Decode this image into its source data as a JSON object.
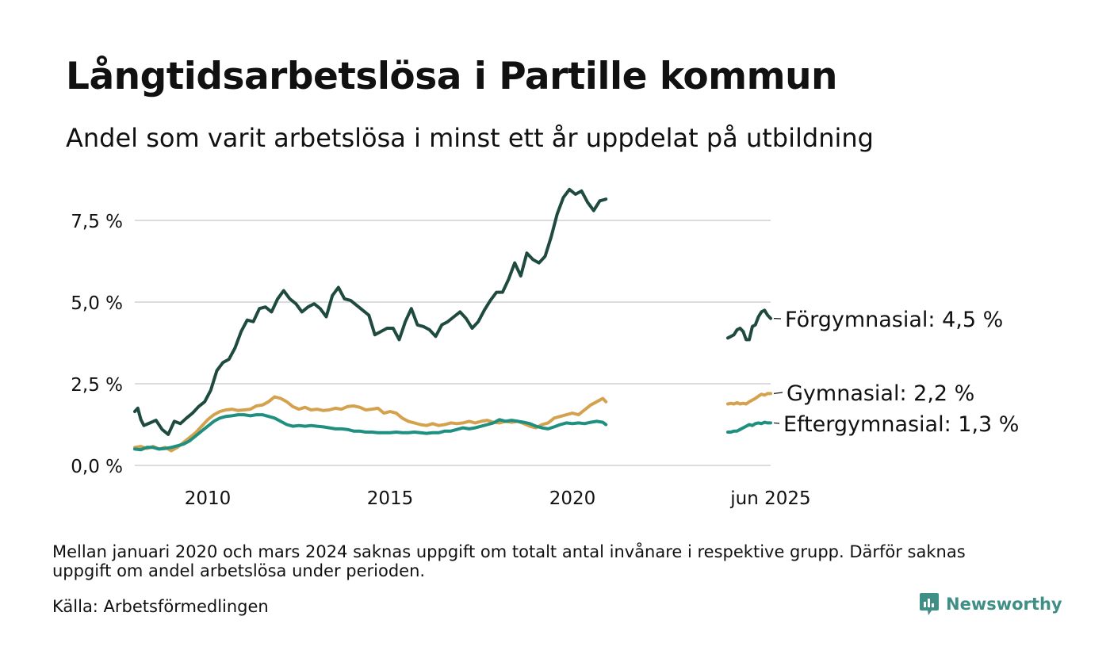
{
  "chart_data": {
    "type": "line",
    "title": "Långtidsarbetslösa i Partille kommun",
    "subtitle": "Andel som varit arbetslösa i minst ett år uppdelat på utbildning",
    "y_ticks": [
      0,
      2.5,
      5,
      7.5
    ],
    "y_tick_labels": [
      "0,0 %",
      "2,5 %",
      "5,0 %",
      "7,5 %"
    ],
    "ylim": [
      0,
      8.6
    ],
    "x_tick_labels": [
      "2010",
      "2015",
      "2020",
      "jun 2025"
    ],
    "x_ticks": [
      "2010-01",
      "2015-01",
      "2020-01",
      "2025-06"
    ],
    "grid": "horizontal",
    "legend": "direct-labels-right",
    "gap": [
      "2021-01",
      "2024-03"
    ],
    "series": [
      {
        "name": "Förgymnasial",
        "end_label": "Förgymnasial: 4,5 %",
        "color": "#1f4a3f",
        "points": [
          [
            "2008-01",
            1.65
          ],
          [
            "2008-02",
            1.75
          ],
          [
            "2008-03",
            1.4
          ],
          [
            "2008-04",
            1.22
          ],
          [
            "2008-06",
            1.3
          ],
          [
            "2008-08",
            1.38
          ],
          [
            "2008-10",
            1.1
          ],
          [
            "2008-12",
            0.95
          ],
          [
            "2009-02",
            1.35
          ],
          [
            "2009-04",
            1.28
          ],
          [
            "2009-06",
            1.45
          ],
          [
            "2009-08",
            1.6
          ],
          [
            "2009-10",
            1.8
          ],
          [
            "2009-12",
            1.95
          ],
          [
            "2010-02",
            2.3
          ],
          [
            "2010-04",
            2.9
          ],
          [
            "2010-06",
            3.15
          ],
          [
            "2010-08",
            3.25
          ],
          [
            "2010-10",
            3.6
          ],
          [
            "2010-12",
            4.1
          ],
          [
            "2011-02",
            4.45
          ],
          [
            "2011-04",
            4.4
          ],
          [
            "2011-06",
            4.8
          ],
          [
            "2011-08",
            4.85
          ],
          [
            "2011-10",
            4.7
          ],
          [
            "2011-12",
            5.1
          ],
          [
            "2012-02",
            5.35
          ],
          [
            "2012-04",
            5.1
          ],
          [
            "2012-06",
            4.95
          ],
          [
            "2012-08",
            4.7
          ],
          [
            "2012-10",
            4.85
          ],
          [
            "2012-12",
            4.95
          ],
          [
            "2013-02",
            4.8
          ],
          [
            "2013-04",
            4.55
          ],
          [
            "2013-06",
            5.2
          ],
          [
            "2013-08",
            5.45
          ],
          [
            "2013-10",
            5.1
          ],
          [
            "2013-12",
            5.05
          ],
          [
            "2014-02",
            4.9
          ],
          [
            "2014-04",
            4.75
          ],
          [
            "2014-06",
            4.6
          ],
          [
            "2014-08",
            4.0
          ],
          [
            "2014-10",
            4.1
          ],
          [
            "2014-12",
            4.2
          ],
          [
            "2015-02",
            4.2
          ],
          [
            "2015-04",
            3.85
          ],
          [
            "2015-06",
            4.4
          ],
          [
            "2015-08",
            4.8
          ],
          [
            "2015-10",
            4.3
          ],
          [
            "2015-12",
            4.25
          ],
          [
            "2016-02",
            4.15
          ],
          [
            "2016-04",
            3.95
          ],
          [
            "2016-06",
            4.3
          ],
          [
            "2016-08",
            4.4
          ],
          [
            "2016-10",
            4.55
          ],
          [
            "2016-12",
            4.7
          ],
          [
            "2017-02",
            4.5
          ],
          [
            "2017-04",
            4.2
          ],
          [
            "2017-06",
            4.4
          ],
          [
            "2017-08",
            4.75
          ],
          [
            "2017-10",
            5.05
          ],
          [
            "2017-12",
            5.3
          ],
          [
            "2018-02",
            5.3
          ],
          [
            "2018-04",
            5.7
          ],
          [
            "2018-06",
            6.2
          ],
          [
            "2018-08",
            5.8
          ],
          [
            "2018-10",
            6.5
          ],
          [
            "2018-12",
            6.3
          ],
          [
            "2019-02",
            6.2
          ],
          [
            "2019-04",
            6.4
          ],
          [
            "2019-06",
            7.0
          ],
          [
            "2019-08",
            7.7
          ],
          [
            "2019-10",
            8.2
          ],
          [
            "2019-12",
            8.45
          ],
          [
            "2020-02",
            8.3
          ],
          [
            "2020-04",
            8.4
          ],
          [
            "2020-06",
            8.05
          ],
          [
            "2020-08",
            7.8
          ],
          [
            "2020-10",
            8.1
          ],
          [
            "2020-12",
            8.15
          ]
        ],
        "points_after_gap": [
          [
            "2024-04",
            3.9
          ],
          [
            "2024-05",
            3.95
          ],
          [
            "2024-06",
            4.0
          ],
          [
            "2024-07",
            4.15
          ],
          [
            "2024-08",
            4.2
          ],
          [
            "2024-09",
            4.1
          ],
          [
            "2024-10",
            3.85
          ],
          [
            "2024-11",
            3.85
          ],
          [
            "2024-12",
            4.25
          ],
          [
            "2025-01",
            4.3
          ],
          [
            "2025-02",
            4.55
          ],
          [
            "2025-03",
            4.7
          ],
          [
            "2025-04",
            4.75
          ],
          [
            "2025-05",
            4.6
          ],
          [
            "2025-06",
            4.5
          ]
        ]
      },
      {
        "name": "Gymnasial",
        "end_label": "Gymnasial: 2,2 %",
        "color": "#d4a24f",
        "points": [
          [
            "2008-01",
            0.55
          ],
          [
            "2008-03",
            0.58
          ],
          [
            "2008-05",
            0.52
          ],
          [
            "2008-07",
            0.58
          ],
          [
            "2008-09",
            0.5
          ],
          [
            "2008-11",
            0.55
          ],
          [
            "2009-01",
            0.45
          ],
          [
            "2009-03",
            0.55
          ],
          [
            "2009-05",
            0.7
          ],
          [
            "2009-07",
            0.85
          ],
          [
            "2009-09",
            1.0
          ],
          [
            "2009-11",
            1.2
          ],
          [
            "2010-01",
            1.4
          ],
          [
            "2010-03",
            1.55
          ],
          [
            "2010-05",
            1.65
          ],
          [
            "2010-07",
            1.7
          ],
          [
            "2010-09",
            1.72
          ],
          [
            "2010-11",
            1.68
          ],
          [
            "2011-01",
            1.7
          ],
          [
            "2011-03",
            1.72
          ],
          [
            "2011-05",
            1.82
          ],
          [
            "2011-07",
            1.85
          ],
          [
            "2011-09",
            1.95
          ],
          [
            "2011-11",
            2.1
          ],
          [
            "2012-01",
            2.05
          ],
          [
            "2012-03",
            1.95
          ],
          [
            "2012-05",
            1.8
          ],
          [
            "2012-07",
            1.72
          ],
          [
            "2012-09",
            1.78
          ],
          [
            "2012-11",
            1.7
          ],
          [
            "2013-01",
            1.72
          ],
          [
            "2013-03",
            1.68
          ],
          [
            "2013-05",
            1.7
          ],
          [
            "2013-07",
            1.75
          ],
          [
            "2013-09",
            1.72
          ],
          [
            "2013-11",
            1.8
          ],
          [
            "2014-01",
            1.82
          ],
          [
            "2014-03",
            1.78
          ],
          [
            "2014-05",
            1.7
          ],
          [
            "2014-07",
            1.72
          ],
          [
            "2014-09",
            1.75
          ],
          [
            "2014-11",
            1.6
          ],
          [
            "2015-01",
            1.65
          ],
          [
            "2015-03",
            1.6
          ],
          [
            "2015-05",
            1.45
          ],
          [
            "2015-07",
            1.35
          ],
          [
            "2015-09",
            1.3
          ],
          [
            "2015-11",
            1.25
          ],
          [
            "2016-01",
            1.22
          ],
          [
            "2016-03",
            1.28
          ],
          [
            "2016-05",
            1.22
          ],
          [
            "2016-07",
            1.25
          ],
          [
            "2016-09",
            1.3
          ],
          [
            "2016-11",
            1.28
          ],
          [
            "2017-01",
            1.3
          ],
          [
            "2017-03",
            1.35
          ],
          [
            "2017-05",
            1.3
          ],
          [
            "2017-07",
            1.35
          ],
          [
            "2017-09",
            1.38
          ],
          [
            "2017-11",
            1.32
          ],
          [
            "2018-01",
            1.3
          ],
          [
            "2018-03",
            1.35
          ],
          [
            "2018-05",
            1.32
          ],
          [
            "2018-07",
            1.35
          ],
          [
            "2018-09",
            1.28
          ],
          [
            "2018-11",
            1.2
          ],
          [
            "2019-01",
            1.15
          ],
          [
            "2019-03",
            1.25
          ],
          [
            "2019-05",
            1.3
          ],
          [
            "2019-07",
            1.45
          ],
          [
            "2019-09",
            1.5
          ],
          [
            "2019-11",
            1.55
          ],
          [
            "2020-01",
            1.6
          ],
          [
            "2020-03",
            1.55
          ],
          [
            "2020-05",
            1.7
          ],
          [
            "2020-07",
            1.85
          ],
          [
            "2020-09",
            1.95
          ],
          [
            "2020-11",
            2.05
          ],
          [
            "2020-12",
            1.95
          ]
        ],
        "points_after_gap": [
          [
            "2024-04",
            1.88
          ],
          [
            "2024-05",
            1.9
          ],
          [
            "2024-06",
            1.88
          ],
          [
            "2024-07",
            1.92
          ],
          [
            "2024-08",
            1.88
          ],
          [
            "2024-09",
            1.9
          ],
          [
            "2024-10",
            1.88
          ],
          [
            "2024-11",
            1.95
          ],
          [
            "2024-12",
            2.0
          ],
          [
            "2025-01",
            2.05
          ],
          [
            "2025-02",
            2.12
          ],
          [
            "2025-03",
            2.18
          ],
          [
            "2025-04",
            2.15
          ],
          [
            "2025-05",
            2.2
          ],
          [
            "2025-06",
            2.2
          ]
        ]
      },
      {
        "name": "Eftergymnasial",
        "end_label": "Eftergymnasial: 1,3 %",
        "color": "#1f8f80",
        "points": [
          [
            "2008-01",
            0.5
          ],
          [
            "2008-03",
            0.48
          ],
          [
            "2008-05",
            0.55
          ],
          [
            "2008-07",
            0.55
          ],
          [
            "2008-09",
            0.5
          ],
          [
            "2008-11",
            0.52
          ],
          [
            "2009-01",
            0.55
          ],
          [
            "2009-03",
            0.6
          ],
          [
            "2009-05",
            0.65
          ],
          [
            "2009-07",
            0.75
          ],
          [
            "2009-09",
            0.9
          ],
          [
            "2009-11",
            1.05
          ],
          [
            "2010-01",
            1.2
          ],
          [
            "2010-03",
            1.35
          ],
          [
            "2010-05",
            1.45
          ],
          [
            "2010-07",
            1.5
          ],
          [
            "2010-09",
            1.52
          ],
          [
            "2010-11",
            1.55
          ],
          [
            "2011-01",
            1.55
          ],
          [
            "2011-03",
            1.52
          ],
          [
            "2011-05",
            1.55
          ],
          [
            "2011-07",
            1.55
          ],
          [
            "2011-09",
            1.5
          ],
          [
            "2011-11",
            1.45
          ],
          [
            "2012-01",
            1.35
          ],
          [
            "2012-03",
            1.25
          ],
          [
            "2012-05",
            1.2
          ],
          [
            "2012-07",
            1.22
          ],
          [
            "2012-09",
            1.2
          ],
          [
            "2012-11",
            1.22
          ],
          [
            "2013-01",
            1.2
          ],
          [
            "2013-03",
            1.18
          ],
          [
            "2013-05",
            1.15
          ],
          [
            "2013-07",
            1.12
          ],
          [
            "2013-09",
            1.12
          ],
          [
            "2013-11",
            1.1
          ],
          [
            "2014-01",
            1.05
          ],
          [
            "2014-03",
            1.05
          ],
          [
            "2014-05",
            1.02
          ],
          [
            "2014-07",
            1.02
          ],
          [
            "2014-09",
            1.0
          ],
          [
            "2014-11",
            1.0
          ],
          [
            "2015-01",
            1.0
          ],
          [
            "2015-03",
            1.02
          ],
          [
            "2015-05",
            1.0
          ],
          [
            "2015-07",
            1.0
          ],
          [
            "2015-09",
            1.02
          ],
          [
            "2015-11",
            1.0
          ],
          [
            "2016-01",
            0.98
          ],
          [
            "2016-03",
            1.0
          ],
          [
            "2016-05",
            1.0
          ],
          [
            "2016-07",
            1.05
          ],
          [
            "2016-09",
            1.05
          ],
          [
            "2016-11",
            1.1
          ],
          [
            "2017-01",
            1.15
          ],
          [
            "2017-03",
            1.12
          ],
          [
            "2017-05",
            1.15
          ],
          [
            "2017-07",
            1.2
          ],
          [
            "2017-09",
            1.25
          ],
          [
            "2017-11",
            1.3
          ],
          [
            "2018-01",
            1.4
          ],
          [
            "2018-03",
            1.35
          ],
          [
            "2018-05",
            1.38
          ],
          [
            "2018-07",
            1.35
          ],
          [
            "2018-09",
            1.32
          ],
          [
            "2018-11",
            1.28
          ],
          [
            "2019-01",
            1.2
          ],
          [
            "2019-03",
            1.15
          ],
          [
            "2019-05",
            1.12
          ],
          [
            "2019-07",
            1.18
          ],
          [
            "2019-09",
            1.25
          ],
          [
            "2019-11",
            1.3
          ],
          [
            "2020-01",
            1.28
          ],
          [
            "2020-03",
            1.3
          ],
          [
            "2020-05",
            1.28
          ],
          [
            "2020-07",
            1.32
          ],
          [
            "2020-09",
            1.35
          ],
          [
            "2020-11",
            1.32
          ],
          [
            "2020-12",
            1.25
          ]
        ],
        "points_after_gap": [
          [
            "2024-04",
            1.02
          ],
          [
            "2024-05",
            1.02
          ],
          [
            "2024-06",
            1.05
          ],
          [
            "2024-07",
            1.05
          ],
          [
            "2024-08",
            1.1
          ],
          [
            "2024-09",
            1.15
          ],
          [
            "2024-10",
            1.2
          ],
          [
            "2024-11",
            1.25
          ],
          [
            "2024-12",
            1.22
          ],
          [
            "2025-01",
            1.28
          ],
          [
            "2025-02",
            1.3
          ],
          [
            "2025-03",
            1.28
          ],
          [
            "2025-04",
            1.32
          ],
          [
            "2025-05",
            1.3
          ],
          [
            "2025-06",
            1.3
          ]
        ]
      }
    ]
  },
  "footnote": "Mellan januari 2020 och mars 2024 saknas uppgift om totalt antal invånare i respektive grupp. Därför saknas uppgift om andel arbetslösa under perioden.",
  "source": "Källa: Arbetsförmedlingen",
  "brand": {
    "name": "Newsworthy",
    "icon": "newsworthy-logo-icon",
    "color": "#3f8f86"
  }
}
